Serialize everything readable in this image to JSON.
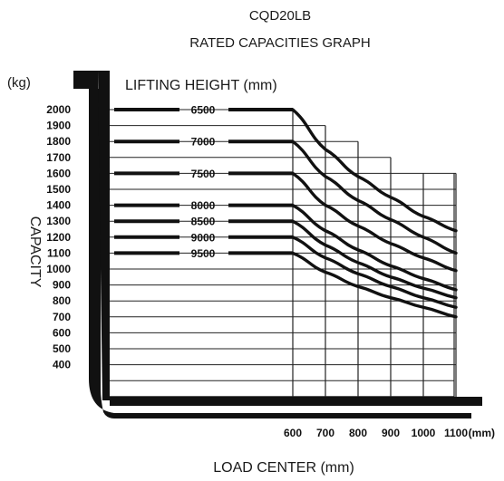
{
  "chart_data": {
    "type": "line",
    "title": "CQD20LB",
    "subtitle": "RATED CAPACITIES GRAPH",
    "ylabel": "CAPACITY",
    "yunit": "(kg)",
    "xlabel": "LOAD CENTER (mm)",
    "xunit": "(mm)",
    "legend_title": "LIFTING HEIGHT (mm)",
    "ylim": [
      350,
      2000
    ],
    "yticks": [
      2000,
      1900,
      1800,
      1700,
      1600,
      1500,
      1400,
      1300,
      1200,
      1100,
      1000,
      900,
      800,
      700,
      600,
      500,
      400
    ],
    "x": [
      600,
      700,
      800,
      900,
      1000,
      1100
    ],
    "grid": true,
    "series": [
      {
        "name": "6500",
        "values": [
          2000,
          1750,
          1580,
          1450,
          1330,
          1240
        ]
      },
      {
        "name": "7000",
        "values": [
          1800,
          1580,
          1430,
          1310,
          1200,
          1100
        ]
      },
      {
        "name": "7500",
        "values": [
          1600,
          1400,
          1270,
          1160,
          1070,
          990
        ]
      },
      {
        "name": "8000",
        "values": [
          1400,
          1240,
          1120,
          1020,
          940,
          870
        ]
      },
      {
        "name": "8500",
        "values": [
          1300,
          1150,
          1040,
          950,
          880,
          820
        ]
      },
      {
        "name": "9000",
        "values": [
          1200,
          1070,
          970,
          890,
          820,
          760
        ]
      },
      {
        "name": "9500",
        "values": [
          1100,
          980,
          890,
          820,
          760,
          700
        ]
      }
    ]
  }
}
